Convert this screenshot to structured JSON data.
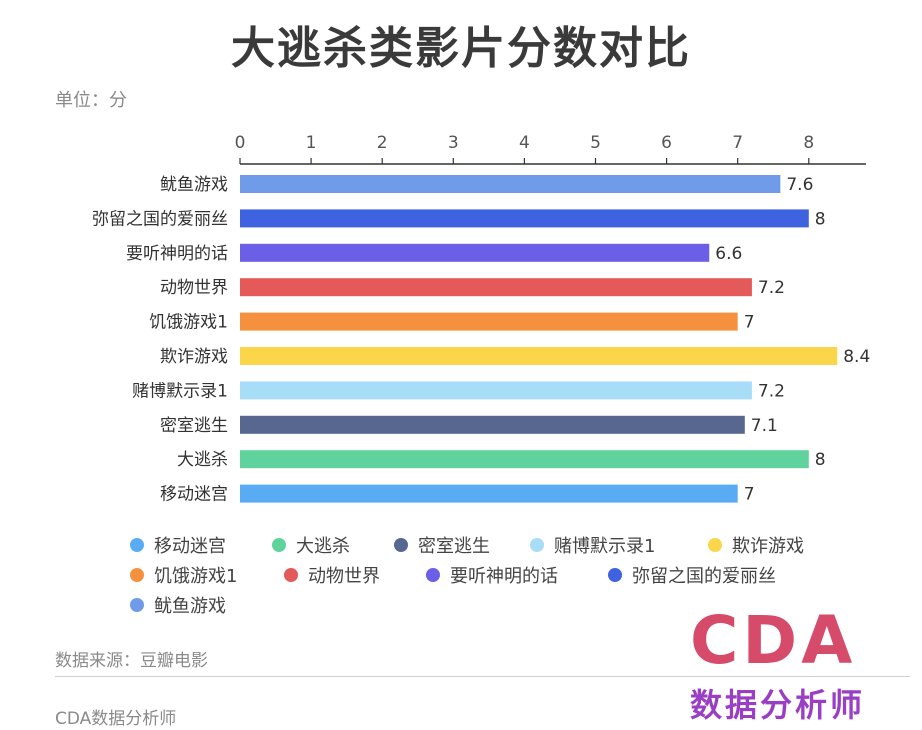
{
  "page": {
    "title": "大逃杀类影片分数对比",
    "unit": "单位：分",
    "source": "数据来源：豆瓣电影",
    "footer": "CDA数据分析师",
    "logo_top": "CDA",
    "logo_bottom": "数据分析师"
  },
  "chart_data": {
    "type": "bar",
    "orientation": "horizontal",
    "title": "大逃杀类影片分数对比",
    "categories": [
      "鱿鱼游戏",
      "弥留之国的爱丽丝",
      "要听神明的话",
      "动物世界",
      "饥饿游戏1",
      "欺诈游戏",
      "赌博默示录1",
      "密室逃生",
      "大逃杀",
      "移动迷宫"
    ],
    "values": [
      7.6,
      8,
      6.6,
      7.2,
      7,
      8.4,
      7.2,
      7.1,
      8,
      7
    ],
    "value_labels": [
      "7.6",
      "8",
      "6.6",
      "7.2",
      "7",
      "8.4",
      "7.2",
      "7.1",
      "8",
      "7"
    ],
    "colors": [
      "#6f9be8",
      "#3f63e0",
      "#6a5fe6",
      "#e45a5a",
      "#f5913e",
      "#fbd64a",
      "#a8ddf7",
      "#57678f",
      "#5fd39b",
      "#59acf4"
    ],
    "xlim": [
      0,
      8.8
    ],
    "ticks": [
      "0",
      "1",
      "2",
      "3",
      "4",
      "5",
      "6",
      "7",
      "8"
    ],
    "axis_position": "top",
    "grid": false,
    "legend_position": "bottom",
    "legend": [
      {
        "name": "移动迷宫",
        "color": "#59acf4"
      },
      {
        "name": "大逃杀",
        "color": "#5fd39b"
      },
      {
        "name": "密室逃生",
        "color": "#57678f"
      },
      {
        "name": "赌博默示录1",
        "color": "#a8ddf7"
      },
      {
        "name": "欺诈游戏",
        "color": "#fbd64a"
      },
      {
        "name": "饥饿游戏1",
        "color": "#f5913e"
      },
      {
        "name": "动物世界",
        "color": "#e45a5a"
      },
      {
        "name": "要听神明的话",
        "color": "#6a5fe6"
      },
      {
        "name": "弥留之国的爱丽丝",
        "color": "#3f63e0"
      },
      {
        "name": "鱿鱼游戏",
        "color": "#6f9be8"
      }
    ]
  }
}
